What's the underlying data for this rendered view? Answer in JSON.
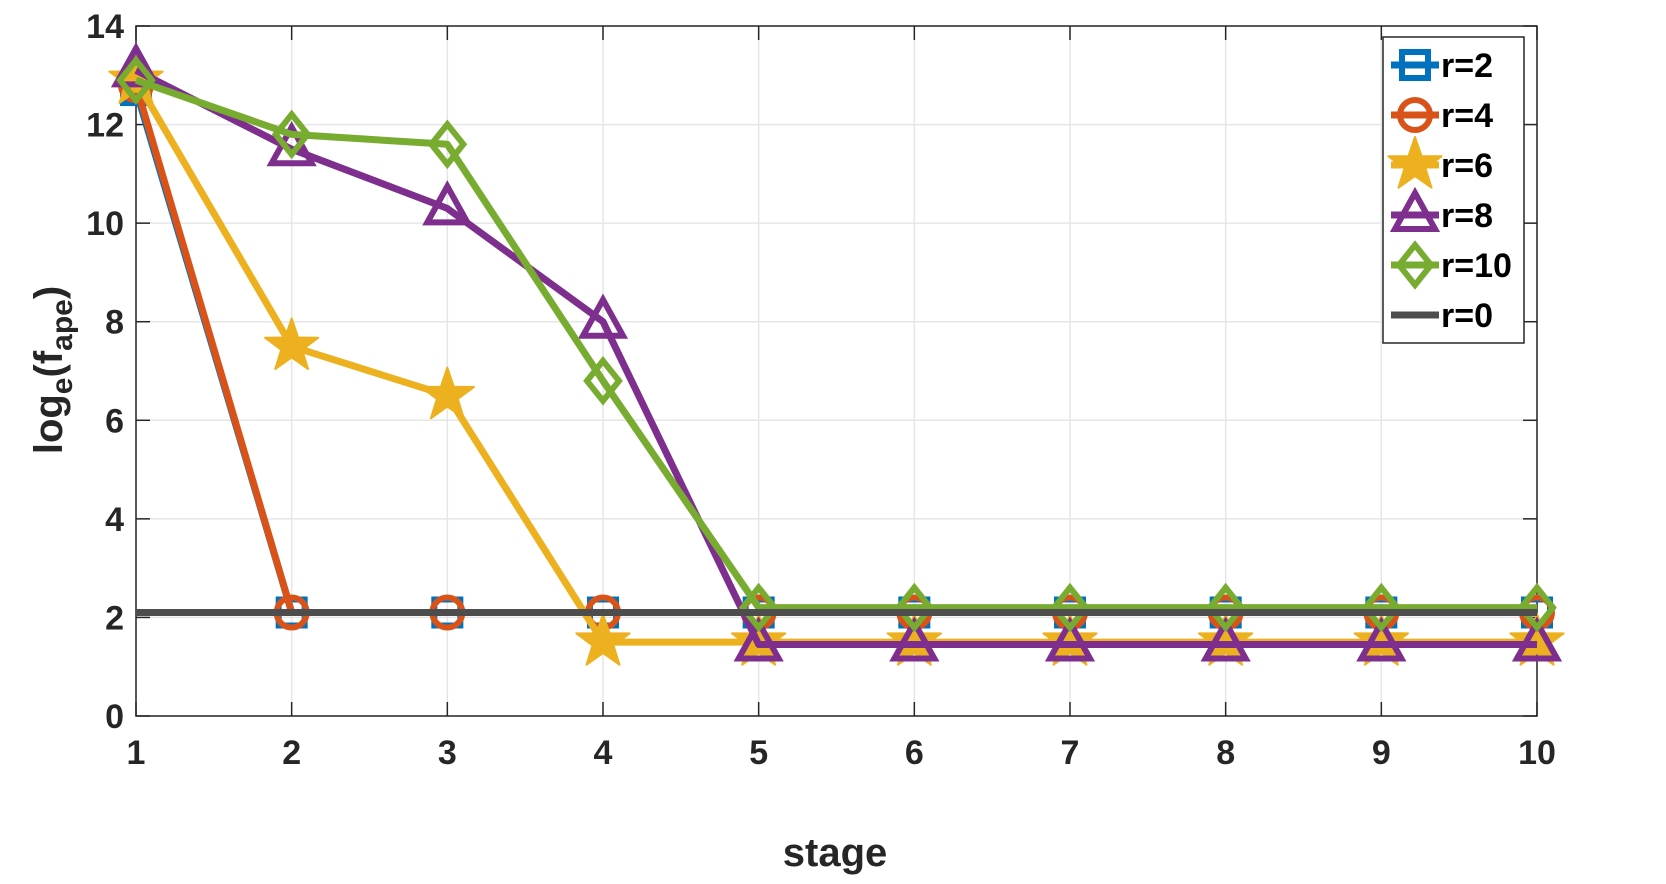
{
  "chart_data": {
    "type": "line",
    "xlabel": "stage",
    "ylabel": {
      "base": "log",
      "sub1": "e",
      "open": "(f",
      "sub2": "ape",
      "close": ")"
    },
    "x": [
      1,
      2,
      3,
      4,
      5,
      6,
      7,
      8,
      9,
      10
    ],
    "xlim": [
      1,
      10
    ],
    "ylim": [
      0,
      14
    ],
    "xticks": [
      "1",
      "2",
      "3",
      "4",
      "5",
      "6",
      "7",
      "8",
      "9",
      "10"
    ],
    "yticks": [
      "0",
      "2",
      "4",
      "6",
      "8",
      "10",
      "12",
      "14"
    ],
    "grid": true,
    "legend_position": "top-right",
    "series": [
      {
        "name": "r=2",
        "color": "#0072BD",
        "marker": "square",
        "values": [
          12.7,
          2.1,
          2.1,
          2.1,
          2.1,
          2.1,
          2.1,
          2.1,
          2.1,
          2.1
        ]
      },
      {
        "name": "r=4",
        "color": "#D95319",
        "marker": "circle",
        "values": [
          12.8,
          2.1,
          2.1,
          2.1,
          2.1,
          2.1,
          2.1,
          2.1,
          2.1,
          2.1
        ]
      },
      {
        "name": "r=6",
        "color": "#EDB120",
        "marker": "star",
        "values": [
          12.9,
          7.5,
          6.5,
          1.5,
          1.5,
          1.5,
          1.5,
          1.5,
          1.5,
          1.5
        ]
      },
      {
        "name": "r=8",
        "color": "#7E2F8E",
        "marker": "triangle",
        "values": [
          13.1,
          11.5,
          10.3,
          8.0,
          1.45,
          1.45,
          1.45,
          1.45,
          1.45,
          1.45
        ]
      },
      {
        "name": "r=10",
        "color": "#77AC30",
        "marker": "diamond",
        "values": [
          12.9,
          11.8,
          11.6,
          6.8,
          2.2,
          2.2,
          2.2,
          2.2,
          2.2,
          2.2
        ]
      },
      {
        "name": "r=0",
        "color": "#4D4D4D",
        "marker": "none",
        "values": [
          2.1,
          2.1,
          2.1,
          2.1,
          2.1,
          2.1,
          2.1,
          2.1,
          2.1,
          2.1
        ]
      }
    ]
  }
}
